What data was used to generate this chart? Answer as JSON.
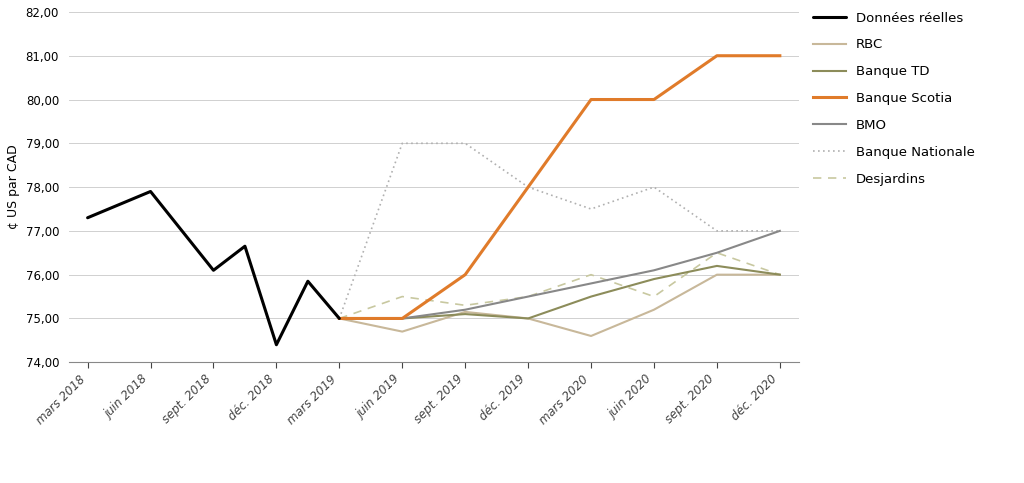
{
  "x_labels": [
    "mars 2018",
    "juin 2018",
    "sept. 2018",
    "déc. 2018",
    "mars 2019",
    "juin 2019",
    "sept. 2019",
    "déc. 2019",
    "mars 2020",
    "juin 2020",
    "sept. 2020",
    "déc. 2020"
  ],
  "donnees_reelles_x": [
    0,
    1,
    2,
    2.5,
    3,
    3.5,
    4
  ],
  "donnees_reelles_y": [
    77.3,
    77.9,
    76.1,
    76.65,
    74.4,
    75.85,
    75.0
  ],
  "rbc_x": [
    4,
    5,
    6,
    7,
    8,
    9,
    10,
    11
  ],
  "rbc_y": [
    75.0,
    74.7,
    75.15,
    75.0,
    74.6,
    75.2,
    76.0,
    76.0
  ],
  "td_x": [
    4,
    5,
    6,
    7,
    8,
    9,
    10,
    11
  ],
  "td_y": [
    75.0,
    75.0,
    75.1,
    75.0,
    75.5,
    75.9,
    76.2,
    76.0
  ],
  "scotia_x": [
    4,
    5,
    6,
    7,
    8,
    9,
    10,
    11
  ],
  "scotia_y": [
    75.0,
    75.0,
    76.0,
    78.0,
    80.0,
    80.0,
    81.0,
    81.0
  ],
  "bmo_x": [
    4,
    5,
    6,
    7,
    8,
    9,
    10,
    11
  ],
  "bmo_y": [
    75.0,
    75.0,
    75.2,
    75.5,
    75.8,
    76.1,
    76.5,
    77.0
  ],
  "nationale_x": [
    4,
    5,
    6,
    7,
    8,
    9,
    10,
    11
  ],
  "nationale_y": [
    75.0,
    79.0,
    79.0,
    78.0,
    77.5,
    78.0,
    77.0,
    77.0
  ],
  "desjardins_x": [
    4,
    5,
    6,
    7,
    8,
    9,
    10,
    11
  ],
  "desjardins_y": [
    75.0,
    75.5,
    75.3,
    75.5,
    76.0,
    75.5,
    76.5,
    76.0
  ],
  "color_donnees": "#000000",
  "color_rbc": "#c8b89a",
  "color_td": "#8c8c5a",
  "color_scotia": "#e07b2a",
  "color_bmo": "#888888",
  "color_nationale": "#b0b0b0",
  "color_desjardins": "#c8c8a0",
  "ylabel": "¢ US par CAD",
  "ylim": [
    74.0,
    82.0
  ],
  "yticks": [
    74.0,
    75.0,
    76.0,
    77.0,
    78.0,
    79.0,
    80.0,
    81.0,
    82.0
  ],
  "ytick_labels": [
    "74,00",
    "75,00",
    "76,00",
    "77,00",
    "78,00",
    "79,00",
    "80,00",
    "81,00",
    "82,00"
  ],
  "background_color": "#ffffff",
  "grid_color": "#d0d0d0",
  "legend_fontsize": 9.5,
  "axis_fontsize": 8.5,
  "ylabel_fontsize": 9
}
